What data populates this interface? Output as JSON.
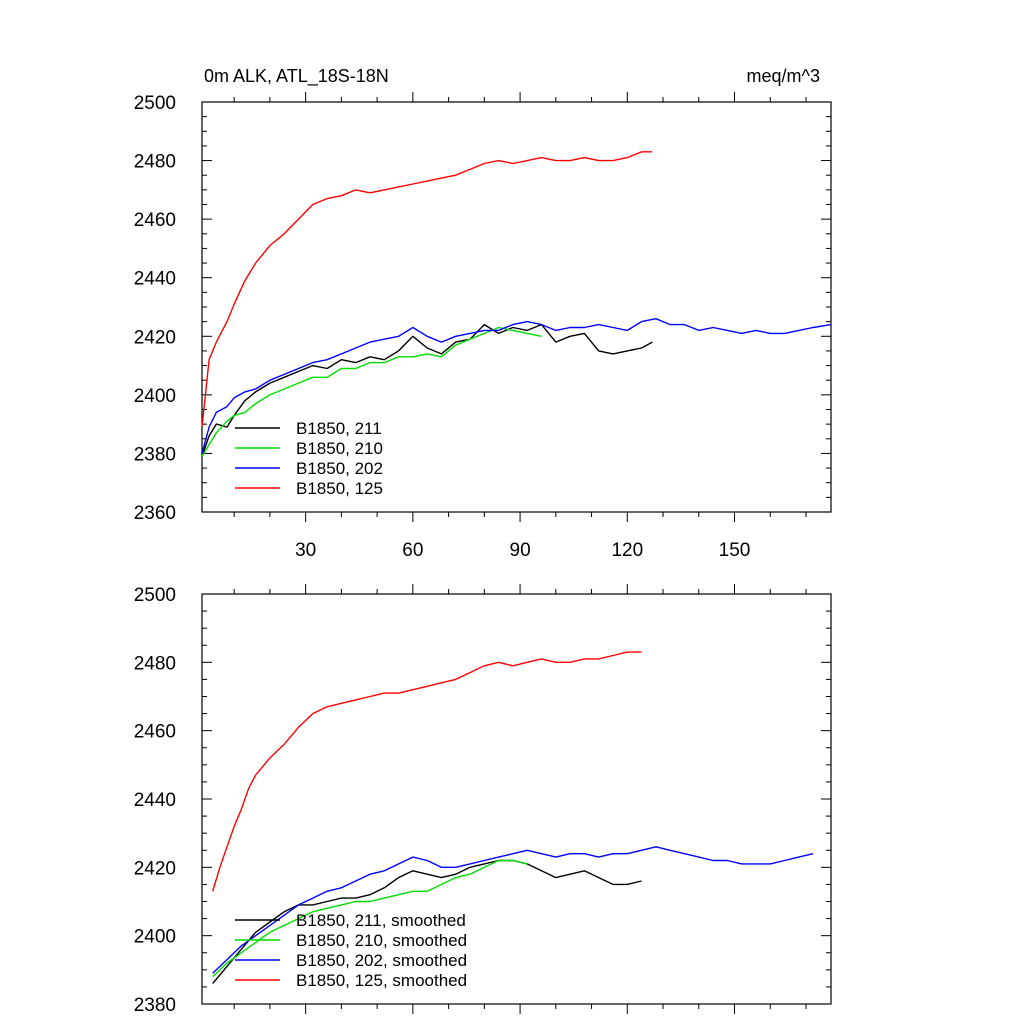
{
  "chart_data": [
    {
      "type": "line",
      "title": "0m ALK, ATL_18S-18N",
      "units": "meq/m^3",
      "xlim": [
        1,
        177
      ],
      "ylim": [
        2360,
        2500
      ],
      "xticks": [
        30,
        60,
        90,
        120,
        150
      ],
      "yticks": [
        2360,
        2380,
        2400,
        2420,
        2440,
        2460,
        2480,
        2500
      ],
      "grid": false,
      "legend_placement": "bottom-left",
      "series": [
        {
          "name": "B1850, 211",
          "color": "#000000",
          "x": [
            1,
            3,
            5,
            8,
            10,
            13,
            16,
            20,
            24,
            28,
            32,
            36,
            40,
            44,
            48,
            52,
            56,
            60,
            64,
            68,
            72,
            76,
            80,
            84,
            88,
            92,
            96,
            100,
            104,
            108,
            112,
            116,
            120,
            124,
            127
          ],
          "values": [
            2379,
            2386,
            2390,
            2389,
            2393,
            2398,
            2401,
            2404,
            2406,
            2408,
            2410,
            2409,
            2412,
            2411,
            2413,
            2412,
            2415,
            2420,
            2416,
            2414,
            2418,
            2419,
            2424,
            2421,
            2423,
            2422,
            2424,
            2418,
            2420,
            2421,
            2415,
            2414,
            2415,
            2416,
            2418
          ]
        },
        {
          "name": "B1850, 210",
          "color": "#00dd00",
          "x": [
            1,
            3,
            5,
            8,
            10,
            13,
            16,
            20,
            24,
            28,
            32,
            36,
            40,
            44,
            48,
            52,
            56,
            60,
            64,
            68,
            72,
            76,
            80,
            84,
            88,
            92,
            96
          ],
          "values": [
            2379,
            2383,
            2387,
            2391,
            2393,
            2394,
            2397,
            2400,
            2402,
            2404,
            2406,
            2406,
            2409,
            2409,
            2411,
            2411,
            2413,
            2413,
            2414,
            2413,
            2417,
            2419,
            2421,
            2423,
            2422,
            2421,
            2420
          ]
        },
        {
          "name": "B1850, 202",
          "color": "#0000ff",
          "x": [
            1,
            3,
            5,
            8,
            10,
            13,
            16,
            20,
            24,
            28,
            32,
            36,
            40,
            44,
            48,
            52,
            56,
            60,
            64,
            68,
            72,
            76,
            80,
            84,
            88,
            92,
            96,
            100,
            104,
            108,
            112,
            116,
            120,
            124,
            128,
            132,
            136,
            140,
            144,
            148,
            152,
            156,
            160,
            164,
            168,
            172,
            177
          ],
          "values": [
            2380,
            2389,
            2394,
            2396,
            2399,
            2401,
            2402,
            2405,
            2407,
            2409,
            2411,
            2412,
            2414,
            2416,
            2418,
            2419,
            2420,
            2423,
            2420,
            2418,
            2420,
            2421,
            2422,
            2422,
            2424,
            2425,
            2424,
            2422,
            2423,
            2423,
            2424,
            2423,
            2422,
            2425,
            2426,
            2424,
            2424,
            2422,
            2423,
            2422,
            2421,
            2422,
            2421,
            2421,
            2422,
            2423,
            2424
          ]
        },
        {
          "name": "B1850, 125",
          "color": "#ff0000",
          "x": [
            1,
            3,
            5,
            8,
            10,
            13,
            16,
            20,
            24,
            28,
            32,
            36,
            40,
            44,
            48,
            52,
            56,
            60,
            64,
            68,
            72,
            76,
            80,
            84,
            88,
            92,
            96,
            100,
            104,
            108,
            112,
            116,
            120,
            124,
            127
          ],
          "values": [
            2389,
            2412,
            2418,
            2425,
            2431,
            2439,
            2445,
            2451,
            2455,
            2460,
            2465,
            2467,
            2468,
            2470,
            2469,
            2470,
            2471,
            2472,
            2473,
            2474,
            2475,
            2477,
            2479,
            2480,
            2479,
            2480,
            2481,
            2480,
            2480,
            2481,
            2480,
            2480,
            2481,
            2483,
            2483
          ]
        }
      ]
    },
    {
      "type": "line",
      "xlim": [
        1,
        177
      ],
      "ylim": [
        2380,
        2500
      ],
      "yticks": [
        2380,
        2400,
        2420,
        2440,
        2460,
        2480,
        2500
      ],
      "xticks": [
        30,
        60,
        90,
        120,
        150
      ],
      "grid": false,
      "legend_placement": "bottom-left",
      "series": [
        {
          "name": "B1850, 211, smoothed",
          "color": "#000000",
          "x": [
            4,
            8,
            12,
            16,
            20,
            24,
            28,
            32,
            36,
            40,
            44,
            48,
            52,
            56,
            60,
            64,
            68,
            72,
            76,
            80,
            84,
            88,
            92,
            96,
            100,
            104,
            108,
            112,
            116,
            120,
            124
          ],
          "values": [
            2386,
            2391,
            2396,
            2401,
            2404,
            2407,
            2409,
            2409,
            2410,
            2411,
            2411,
            2412,
            2414,
            2417,
            2419,
            2418,
            2417,
            2418,
            2420,
            2421,
            2422,
            2422,
            2421,
            2419,
            2417,
            2418,
            2419,
            2417,
            2415,
            2415,
            2416
          ]
        },
        {
          "name": "B1850, 210, smoothed",
          "color": "#00dd00",
          "x": [
            4,
            8,
            12,
            16,
            20,
            24,
            28,
            32,
            36,
            40,
            44,
            48,
            52,
            56,
            60,
            64,
            68,
            72,
            76,
            80,
            84,
            88,
            92
          ],
          "values": [
            2388,
            2392,
            2395,
            2398,
            2401,
            2403,
            2405,
            2407,
            2408,
            2409,
            2410,
            2410,
            2411,
            2412,
            2413,
            2413,
            2415,
            2417,
            2418,
            2420,
            2422,
            2422,
            2421
          ]
        },
        {
          "name": "B1850, 202, smoothed",
          "color": "#0000ff",
          "x": [
            4,
            8,
            12,
            16,
            20,
            24,
            28,
            32,
            36,
            40,
            44,
            48,
            52,
            56,
            60,
            64,
            68,
            72,
            76,
            80,
            84,
            88,
            92,
            96,
            100,
            104,
            108,
            112,
            116,
            120,
            124,
            128,
            132,
            136,
            140,
            144,
            148,
            152,
            156,
            160,
            164,
            168,
            172
          ],
          "values": [
            2389,
            2393,
            2397,
            2400,
            2403,
            2406,
            2409,
            2411,
            2413,
            2414,
            2416,
            2418,
            2419,
            2421,
            2423,
            2422,
            2420,
            2420,
            2421,
            2422,
            2423,
            2424,
            2425,
            2424,
            2423,
            2424,
            2424,
            2423,
            2424,
            2424,
            2425,
            2426,
            2425,
            2424,
            2423,
            2422,
            2422,
            2421,
            2421,
            2421,
            2422,
            2423,
            2424
          ]
        },
        {
          "name": "B1850, 125, smoothed",
          "color": "#ff0000",
          "x": [
            4,
            6,
            8,
            10,
            12,
            14,
            16,
            20,
            24,
            28,
            32,
            36,
            40,
            44,
            48,
            52,
            56,
            60,
            64,
            68,
            72,
            76,
            80,
            84,
            88,
            92,
            96,
            100,
            104,
            108,
            112,
            116,
            120,
            124
          ],
          "values": [
            2413,
            2420,
            2426,
            2432,
            2437,
            2443,
            2447,
            2452,
            2456,
            2461,
            2465,
            2467,
            2468,
            2469,
            2470,
            2471,
            2471,
            2472,
            2473,
            2474,
            2475,
            2477,
            2479,
            2480,
            2479,
            2480,
            2481,
            2480,
            2480,
            2481,
            2481,
            2482,
            2483,
            2483
          ]
        }
      ]
    }
  ]
}
